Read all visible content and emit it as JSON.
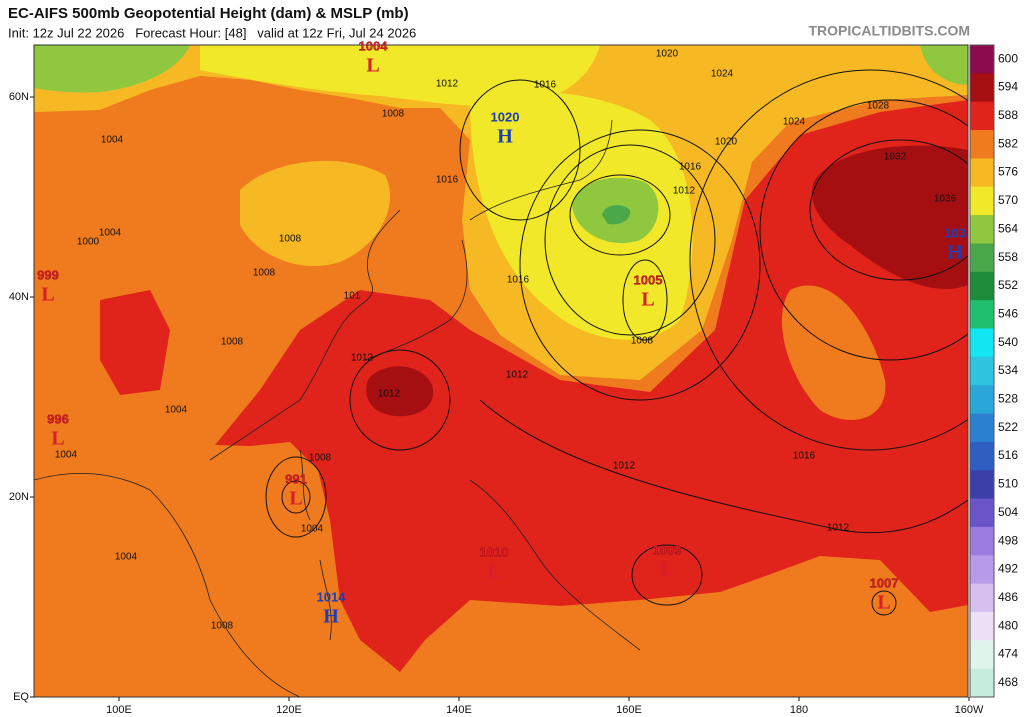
{
  "header": {
    "title": "EC-AIFS 500mb Geopotential Height (dam) & MSLP (mb)",
    "subtitle": "Init: 12z Jul 22 2026   Forecast Hour: [48]   valid at 12z Fri, Jul 24 2026",
    "watermark": "TROPICALTIDBITS.COM"
  },
  "colorbar": {
    "levels": [
      600,
      594,
      588,
      582,
      576,
      570,
      564,
      558,
      552,
      546,
      540,
      534,
      528,
      522,
      516,
      510,
      504,
      498,
      492,
      486,
      480,
      474,
      468
    ],
    "colors": [
      "#8c0b4e",
      "#a60f12",
      "#e0231b",
      "#f07a1e",
      "#f6b923",
      "#f1e829",
      "#8fc83f",
      "#4ba84a",
      "#1f8c3c",
      "#20bf6e",
      "#13e6f2",
      "#2ec4e0",
      "#2ba6d8",
      "#2b80d0",
      "#2e5fc0",
      "#3b3fa8",
      "#6a55c8",
      "#9a7be0",
      "#b89aea",
      "#d5c0f0",
      "#ecdff6",
      "#dff5ec",
      "#c6ecdc"
    ]
  },
  "axes": {
    "lat": [
      "60N",
      "40N",
      "20N",
      "EQ"
    ],
    "lon": [
      "100E",
      "120E",
      "140E",
      "160E",
      "180",
      "160W"
    ]
  },
  "pressure_centers": [
    {
      "value": "1004",
      "type": "L"
    },
    {
      "value": "1020",
      "type": "H"
    },
    {
      "value": "1005",
      "type": "L"
    },
    {
      "value": "103",
      "type": "H"
    },
    {
      "value": "999",
      "type": "L"
    },
    {
      "value": "996",
      "type": "L"
    },
    {
      "value": "991",
      "type": "L"
    },
    {
      "value": "1014",
      "type": "H"
    },
    {
      "value": "1010",
      "type": "L"
    },
    {
      "value": "1009",
      "type": "L"
    },
    {
      "value": "1007",
      "type": "L"
    }
  ],
  "isobar_labels": [
    "1016",
    "1020",
    "1024",
    "1028",
    "1024",
    "1020",
    "1016",
    "1012",
    "1032",
    "1036",
    "1016",
    "1008",
    "1012",
    "1012",
    "1012",
    "1016",
    "1012",
    "1008",
    "1004",
    "1008",
    "1012",
    "1008",
    "1016",
    "1008",
    "1008",
    "1004",
    "1004",
    "1000",
    "1004",
    "1008",
    "1004",
    "1004",
    "1012",
    "101"
  ]
}
